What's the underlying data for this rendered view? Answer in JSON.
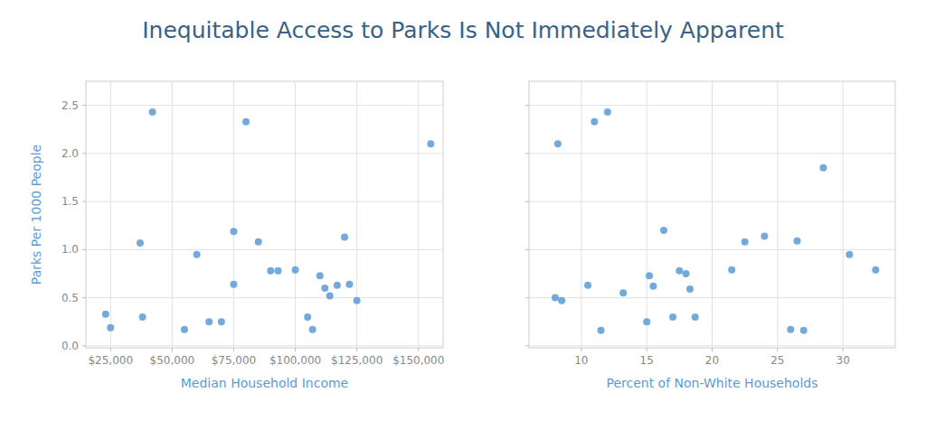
{
  "chart_data": [
    {
      "type": "scatter",
      "title": "Inequitable Access to Parks Is Not Immediately Apparent",
      "xlabel": "Median Household Income",
      "ylabel": "Parks Per 1000 People",
      "color": "#5b9bd5",
      "x": [
        23000,
        25000,
        37000,
        38000,
        42000,
        55000,
        60000,
        65000,
        70000,
        75000,
        75000,
        80000,
        85000,
        90000,
        93000,
        100000,
        105000,
        107000,
        110000,
        112000,
        114000,
        117000,
        120000,
        122000,
        125000,
        155000
      ],
      "values": [
        0.33,
        0.19,
        1.07,
        0.3,
        2.43,
        0.17,
        0.95,
        0.25,
        0.25,
        1.19,
        0.64,
        2.33,
        1.08,
        0.78,
        0.78,
        0.79,
        0.3,
        0.17,
        0.73,
        0.6,
        0.52,
        0.63,
        1.13,
        0.64,
        0.47,
        2.1
      ],
      "xlim": [
        15000,
        160000
      ],
      "ylim": [
        -0.02,
        2.75
      ],
      "xticks": [
        {
          "value": 25000,
          "label": "$25,000"
        },
        {
          "value": 50000,
          "label": "$50,000"
        },
        {
          "value": 75000,
          "label": "$75,000"
        },
        {
          "value": 100000,
          "label": "$100,000"
        },
        {
          "value": 125000,
          "label": "$125,000"
        },
        {
          "value": 150000,
          "label": "$150,000"
        }
      ],
      "yticks": [
        {
          "value": 0.0,
          "label": "0.0"
        },
        0.5,
        {
          "value": 1.0,
          "label": "1.0"
        },
        1.5,
        {
          "value": 2.0,
          "label": "2.0"
        },
        2.5
      ],
      "grid": true
    },
    {
      "type": "scatter",
      "xlabel": "Percent of Non-White Households",
      "color": "#5b9bd5",
      "x": [
        8.0,
        8.2,
        8.5,
        10.5,
        11.0,
        11.5,
        12.0,
        13.2,
        15.0,
        15.2,
        15.5,
        16.3,
        17.0,
        17.5,
        18.0,
        18.3,
        18.7,
        21.5,
        22.5,
        24.0,
        26.0,
        26.5,
        27.0,
        28.5,
        30.5,
        32.5
      ],
      "values": [
        0.5,
        2.1,
        0.47,
        0.63,
        2.33,
        0.16,
        2.43,
        0.55,
        0.25,
        0.73,
        0.62,
        1.2,
        0.3,
        0.78,
        0.75,
        0.59,
        0.3,
        0.79,
        1.08,
        1.14,
        0.17,
        1.09,
        0.16,
        1.85,
        0.95,
        0.79
      ],
      "xlim": [
        6,
        34
      ],
      "ylim": [
        -0.02,
        2.75
      ],
      "xticks": [
        10,
        15,
        20,
        25,
        30
      ],
      "yticks": [
        0.0,
        0.5,
        1.0,
        1.5,
        2.0,
        2.5
      ],
      "tick_labels": "x",
      "grid": true
    }
  ]
}
